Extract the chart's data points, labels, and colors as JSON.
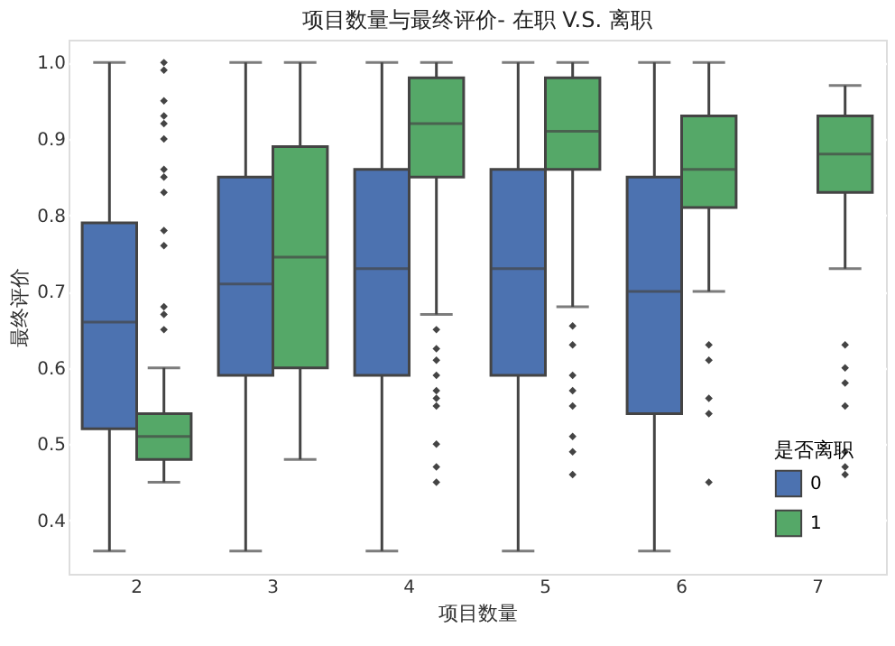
{
  "chart_data": {
    "type": "box",
    "title": "项目数量与最终评价- 在职 V.S. 离职",
    "xlabel": "项目数量",
    "ylabel": "最终评价",
    "legend_title": "是否离职",
    "legend": "bottom right",
    "grid": "y",
    "categories": [
      "2",
      "3",
      "4",
      "5",
      "6",
      "7"
    ],
    "ylim": [
      0.33,
      1.03
    ],
    "yticks": [
      0.4,
      0.5,
      0.6,
      0.7,
      0.8,
      0.9,
      {
        "value": 1.0,
        "label": "1.0"
      }
    ],
    "series": [
      {
        "name": "0",
        "color": "#4c72b0",
        "boxes": [
          {
            "low": 0.36,
            "q1": 0.52,
            "median": 0.66,
            "q3": 0.79,
            "high": 1.0
          },
          {
            "low": 0.36,
            "q1": 0.59,
            "median": 0.71,
            "q3": 0.85,
            "high": 1.0
          },
          {
            "low": 0.36,
            "q1": 0.59,
            "median": 0.73,
            "q3": 0.86,
            "high": 1.0
          },
          {
            "low": 0.36,
            "q1": 0.59,
            "median": 0.73,
            "q3": 0.86,
            "high": 1.0
          },
          {
            "low": 0.36,
            "q1": 0.54,
            "median": 0.7,
            "q3": 0.85,
            "high": 1.0
          },
          null
        ]
      },
      {
        "name": "1",
        "color": "#55a868",
        "boxes": [
          {
            "low": 0.45,
            "q1": 0.48,
            "median": 0.51,
            "q3": 0.54,
            "high": 0.6,
            "outliers": [
              0.65,
              0.67,
              0.68,
              0.76,
              0.78,
              0.83,
              0.85,
              0.86,
              0.9,
              0.92,
              0.93,
              0.95,
              0.99,
              1.0
            ]
          },
          {
            "low": 0.48,
            "q1": 0.6,
            "median": 0.745,
            "q3": 0.89,
            "high": 1.0
          },
          {
            "low": 0.67,
            "q1": 0.85,
            "median": 0.92,
            "q3": 0.98,
            "high": 1.0,
            "outliers": [
              0.45,
              0.47,
              0.5,
              0.55,
              0.56,
              0.57,
              0.59,
              0.61,
              0.625,
              0.65
            ]
          },
          {
            "low": 0.68,
            "q1": 0.86,
            "median": 0.91,
            "q3": 0.98,
            "high": 1.0,
            "outliers": [
              0.46,
              0.49,
              0.51,
              0.55,
              0.57,
              0.59,
              0.63,
              0.655
            ]
          },
          {
            "low": 0.7,
            "q1": 0.81,
            "median": 0.86,
            "q3": 0.93,
            "high": 1.0,
            "outliers": [
              0.45,
              0.54,
              0.56,
              0.61,
              0.63
            ]
          },
          {
            "low": 0.73,
            "q1": 0.83,
            "median": 0.88,
            "q3": 0.93,
            "high": 0.97,
            "outliers": [
              0.46,
              0.47,
              0.49,
              0.55,
              0.58,
              0.6,
              0.63
            ]
          }
        ]
      }
    ]
  }
}
